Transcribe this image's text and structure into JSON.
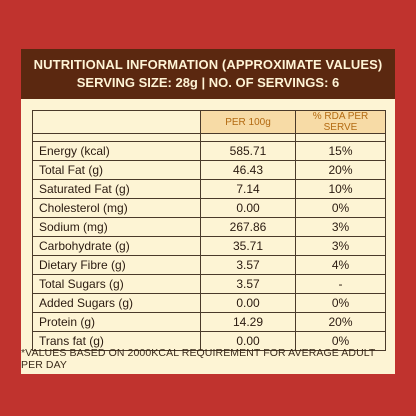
{
  "header": {
    "title": "NUTRITIONAL INFORMATION (APPROXIMATE VALUES)",
    "serving": "SERVING SIZE: 28g  |  NO. OF SERVINGS: 6"
  },
  "table": {
    "col_per100g": "PER 100g",
    "col_rda": "% RDA PER SERVE",
    "rows": [
      {
        "name": "Energy (kcal)",
        "per100g": "585.71",
        "rda": "15%"
      },
      {
        "name": "Total Fat (g)",
        "per100g": "46.43",
        "rda": "20%"
      },
      {
        "name": "Saturated Fat (g)",
        "per100g": "7.14",
        "rda": "10%"
      },
      {
        "name": "Cholesterol (mg)",
        "per100g": "0.00",
        "rda": "0%"
      },
      {
        "name": "Sodium (mg)",
        "per100g": "267.86",
        "rda": "3%"
      },
      {
        "name": "Carbohydrate (g)",
        "per100g": "35.71",
        "rda": "3%"
      },
      {
        "name": "Dietary Fibre (g)",
        "per100g": "3.57",
        "rda": "4%"
      },
      {
        "name": "Total Sugars (g)",
        "per100g": "3.57",
        "rda": "-"
      },
      {
        "name": "Added Sugars (g)",
        "per100g": "0.00",
        "rda": "0%"
      },
      {
        "name": "Protein (g)",
        "per100g": "14.29",
        "rda": "20%"
      },
      {
        "name": "Trans fat (g)",
        "per100g": "0.00",
        "rda": "0%"
      }
    ]
  },
  "footnote": "*VALUES BASED ON 2000KCAL REQUIREMENT FOR AVERAGE ADULT PER DAY"
}
